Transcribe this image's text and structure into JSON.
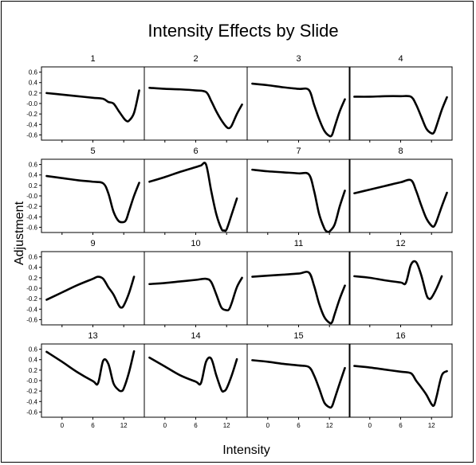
{
  "chart_data": {
    "type": "line",
    "title": "Intensity Effects by Slide",
    "xlabel": "Intensity",
    "ylabel": "Adjustment",
    "xlim": [
      -4,
      16
    ],
    "ylim": [
      -0.7,
      0.7
    ],
    "xticks": [
      0,
      6,
      12
    ],
    "xtick_labels": [
      "0",
      "6",
      "12"
    ],
    "yticks": [
      0.6,
      0.4,
      0.2,
      0.0,
      -0.2,
      -0.4,
      -0.6
    ],
    "ytick_labels": [
      "0.6",
      "0.4",
      "0.2",
      "-0.0",
      "-0.2",
      "-0.4",
      "-0.6"
    ],
    "grid": false,
    "layout": "4x4 panels",
    "panels": [
      {
        "label": "1",
        "x": [
          -3,
          0,
          3,
          6,
          8,
          9,
          10,
          11,
          12,
          12.5,
          13,
          14,
          15
        ],
        "y": [
          0.2,
          0.17,
          0.14,
          0.11,
          0.09,
          0.03,
          0.0,
          -0.14,
          -0.28,
          -0.33,
          -0.33,
          -0.18,
          0.25
        ]
      },
      {
        "label": "2",
        "x": [
          -3,
          0,
          3,
          6,
          8,
          9,
          10,
          11,
          12,
          12.5,
          13,
          14,
          15
        ],
        "y": [
          0.3,
          0.28,
          0.27,
          0.25,
          0.22,
          0.05,
          -0.15,
          -0.32,
          -0.45,
          -0.47,
          -0.42,
          -0.2,
          -0.02
        ]
      },
      {
        "label": "3",
        "x": [
          -3,
          0,
          3,
          6,
          8,
          9,
          10,
          11,
          12,
          12.5,
          13,
          14,
          15
        ],
        "y": [
          0.38,
          0.35,
          0.31,
          0.28,
          0.26,
          -0.02,
          -0.3,
          -0.52,
          -0.62,
          -0.6,
          -0.45,
          -0.15,
          0.08
        ]
      },
      {
        "label": "4",
        "x": [
          -3,
          0,
          3,
          6,
          8,
          9,
          10,
          11,
          12,
          12.5,
          13,
          14,
          15
        ],
        "y": [
          0.13,
          0.13,
          0.14,
          0.14,
          0.13,
          -0.02,
          -0.25,
          -0.48,
          -0.57,
          -0.55,
          -0.42,
          -0.12,
          0.12
        ]
      },
      {
        "label": "5",
        "x": [
          -3,
          0,
          3,
          6,
          8,
          9,
          10,
          11,
          12,
          12.5,
          13,
          14,
          15
        ],
        "y": [
          0.38,
          0.34,
          0.3,
          0.27,
          0.24,
          0.05,
          -0.3,
          -0.48,
          -0.5,
          -0.45,
          -0.3,
          0.0,
          0.25
        ]
      },
      {
        "label": "6",
        "x": [
          -3,
          0,
          3,
          6,
          7,
          8,
          9,
          10,
          11,
          11.5,
          12,
          13,
          14
        ],
        "y": [
          0.27,
          0.36,
          0.46,
          0.55,
          0.58,
          0.6,
          0.1,
          -0.35,
          -0.63,
          -0.66,
          -0.64,
          -0.35,
          -0.05
        ]
      },
      {
        "label": "7",
        "x": [
          -3,
          0,
          3,
          6,
          8,
          9,
          10,
          11,
          11.5,
          12,
          13,
          14,
          15
        ],
        "y": [
          0.5,
          0.47,
          0.45,
          0.43,
          0.41,
          0.1,
          -0.35,
          -0.62,
          -0.68,
          -0.68,
          -0.55,
          -0.2,
          0.1
        ]
      },
      {
        "label": "8",
        "x": [
          -3,
          0,
          3,
          6,
          8,
          9,
          10,
          11,
          12,
          12.5,
          13,
          14,
          15
        ],
        "y": [
          0.05,
          0.12,
          0.19,
          0.26,
          0.3,
          0.1,
          -0.18,
          -0.43,
          -0.57,
          -0.58,
          -0.48,
          -0.2,
          0.06
        ]
      },
      {
        "label": "9",
        "x": [
          -3,
          0,
          3,
          6,
          7,
          8,
          9,
          10,
          11,
          11.5,
          12,
          13,
          14
        ],
        "y": [
          -0.22,
          -0.08,
          0.06,
          0.18,
          0.22,
          0.18,
          0.02,
          -0.12,
          -0.32,
          -0.37,
          -0.33,
          -0.1,
          0.22
        ]
      },
      {
        "label": "10",
        "x": [
          -3,
          0,
          3,
          6,
          8,
          9,
          10,
          11,
          12,
          12.5,
          13,
          14,
          15
        ],
        "y": [
          0.08,
          0.1,
          0.13,
          0.16,
          0.18,
          0.12,
          -0.12,
          -0.37,
          -0.42,
          -0.4,
          -0.28,
          0.02,
          0.2
        ]
      },
      {
        "label": "11",
        "x": [
          -3,
          0,
          3,
          6,
          8,
          9,
          10,
          11,
          12,
          12.5,
          13,
          14,
          15
        ],
        "y": [
          0.22,
          0.24,
          0.26,
          0.28,
          0.3,
          0.05,
          -0.3,
          -0.55,
          -0.66,
          -0.65,
          -0.5,
          -0.2,
          0.05
        ]
      },
      {
        "label": "12",
        "x": [
          -3,
          0,
          3,
          6,
          7,
          8,
          9,
          10,
          11,
          11.5,
          12,
          13,
          14
        ],
        "y": [
          0.23,
          0.2,
          0.15,
          0.11,
          0.1,
          0.45,
          0.5,
          0.25,
          -0.12,
          -0.2,
          -0.18,
          0.0,
          0.23
        ]
      },
      {
        "label": "13",
        "x": [
          -3,
          0,
          3,
          6,
          7,
          8,
          9,
          10,
          11,
          11.5,
          12,
          13,
          14
        ],
        "y": [
          0.55,
          0.36,
          0.16,
          -0.01,
          -0.05,
          0.38,
          0.32,
          -0.05,
          -0.18,
          -0.2,
          -0.15,
          0.15,
          0.56
        ]
      },
      {
        "label": "14",
        "x": [
          -3,
          0,
          3,
          6,
          7,
          8,
          9,
          10,
          11,
          11.5,
          12,
          13,
          14
        ],
        "y": [
          0.44,
          0.27,
          0.1,
          -0.02,
          -0.05,
          0.36,
          0.42,
          0.1,
          -0.18,
          -0.2,
          -0.15,
          0.1,
          0.41
        ]
      },
      {
        "label": "15",
        "x": [
          -3,
          0,
          3,
          6,
          8,
          9,
          10,
          11,
          12,
          12.5,
          13,
          14,
          15
        ],
        "y": [
          0.39,
          0.36,
          0.32,
          0.29,
          0.26,
          0.1,
          -0.15,
          -0.42,
          -0.51,
          -0.49,
          -0.35,
          -0.05,
          0.24
        ]
      },
      {
        "label": "16",
        "x": [
          -3,
          0,
          3,
          6,
          8,
          9,
          10,
          11,
          12,
          12.5,
          13,
          14,
          15
        ],
        "y": [
          0.28,
          0.25,
          0.21,
          0.17,
          0.14,
          0.0,
          -0.13,
          -0.27,
          -0.45,
          -0.47,
          -0.3,
          0.1,
          0.18
        ]
      }
    ]
  }
}
